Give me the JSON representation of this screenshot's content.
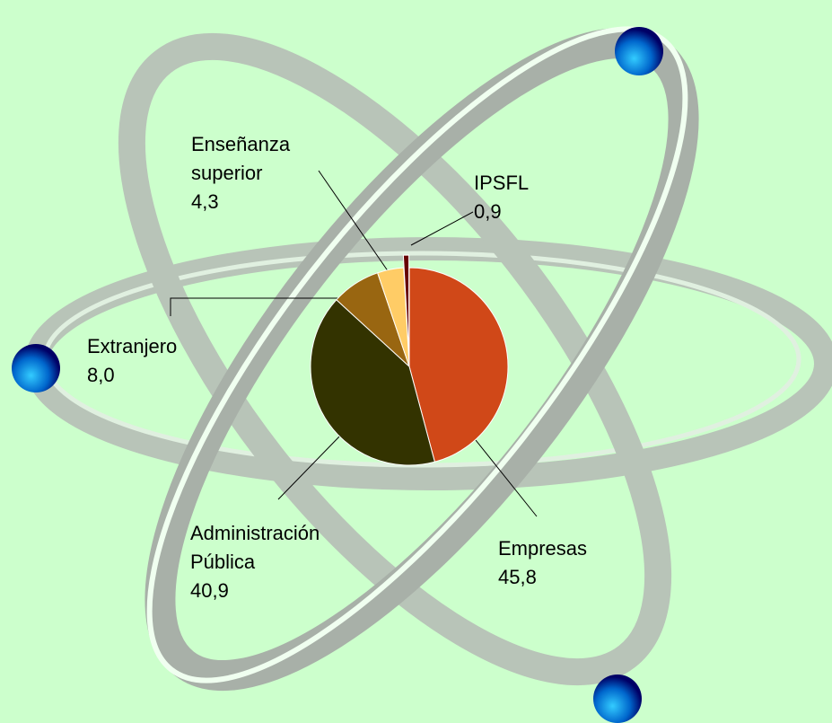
{
  "chart_data": {
    "type": "pie",
    "categories": [
      "Empresas",
      "Administración Pública",
      "Extranjero",
      "Enseñanza superior",
      "IPSFL"
    ],
    "values": [
      45.8,
      40.9,
      8.0,
      4.3,
      0.9
    ],
    "value_labels": [
      "45,8",
      "40,9",
      "8,0",
      "4,3",
      "0,9"
    ],
    "colors": [
      "#d04818",
      "#333300",
      "#996611",
      "#ffcc66",
      "#660000"
    ]
  }
}
